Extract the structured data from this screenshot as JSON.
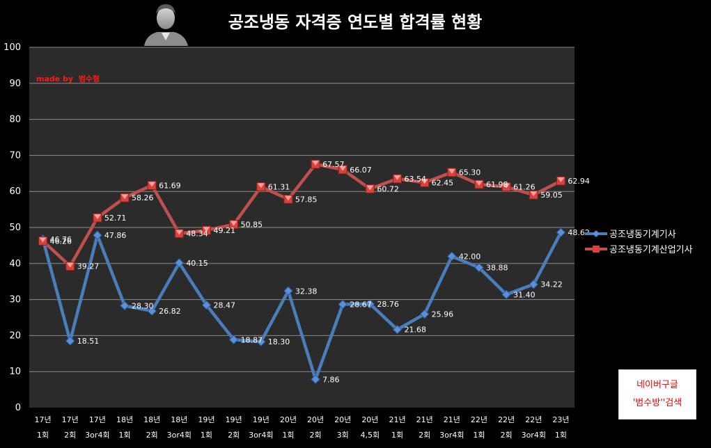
{
  "chart_data": {
    "type": "line",
    "title": "공조냉동 자격증 연도별 합격률 현황",
    "credit": "made by  범수형",
    "ylim": [
      0,
      100
    ],
    "yticks": [
      "0",
      "10",
      "20",
      "30",
      "40",
      "50",
      "60",
      "70",
      "80",
      "90",
      "100"
    ],
    "grid": true,
    "legend_position": "right",
    "categories": [
      [
        "17년",
        "1회"
      ],
      [
        "17년",
        "2회"
      ],
      [
        "17년",
        "3or4회"
      ],
      [
        "18년",
        "1회"
      ],
      [
        "18년",
        "2회"
      ],
      [
        "18년",
        "3or4회"
      ],
      [
        "19년",
        "1회"
      ],
      [
        "19년",
        "2회"
      ],
      [
        "19년",
        "3or4회"
      ],
      [
        "20년",
        "1회"
      ],
      [
        "20년",
        "2회"
      ],
      [
        "20년",
        "3회"
      ],
      [
        "20년",
        "4,5회"
      ],
      [
        "21년",
        "1회"
      ],
      [
        "21년",
        "2회"
      ],
      [
        "21년",
        "3or4회"
      ],
      [
        "22년",
        "1회"
      ],
      [
        "22년",
        "2회"
      ],
      [
        "22년",
        "3or4회"
      ],
      [
        "23년",
        "1회"
      ]
    ],
    "series": [
      {
        "name": "공조냉동기계기사",
        "color": "#4a7ebb",
        "values": [
          46.76,
          18.51,
          47.86,
          28.3,
          26.82,
          40.15,
          28.47,
          18.87,
          18.3,
          32.38,
          7.86,
          28.67,
          28.76,
          21.68,
          25.96,
          42.0,
          38.88,
          31.4,
          34.22,
          48.62
        ],
        "labels": [
          "46.76",
          "18.51",
          "47.86",
          "28.30",
          "26.82",
          "40.15",
          "28.47",
          "18.87",
          "18.30",
          "32.38",
          "7.86",
          "28.67",
          "28.76",
          "21.68",
          "25.96",
          "42.00",
          "38.88",
          "31.40",
          "34.22",
          "48.62"
        ]
      },
      {
        "name": "공조냉동기계산업기사",
        "color": "#c0504d",
        "values": [
          46.26,
          39.27,
          52.71,
          58.26,
          61.69,
          48.34,
          49.21,
          50.85,
          61.31,
          57.85,
          67.57,
          66.07,
          60.72,
          63.54,
          62.45,
          65.3,
          61.98,
          61.26,
          59.05,
          62.94
        ],
        "labels": [
          "46.26",
          "39.27",
          "52.71",
          "58.26",
          "61.69",
          "48.34",
          "49.21",
          "50.85",
          "61.31",
          "57.85",
          "67.57",
          "66.07",
          "60.72",
          "63.54",
          "62.45",
          "65.30",
          "61.98",
          "61.26",
          "59.05",
          "62.94"
        ]
      }
    ]
  },
  "stamp": {
    "line1": "네이버구글",
    "line2": "'범수방''검색"
  },
  "avatar": {
    "icon": "user-silhouette-icon"
  }
}
